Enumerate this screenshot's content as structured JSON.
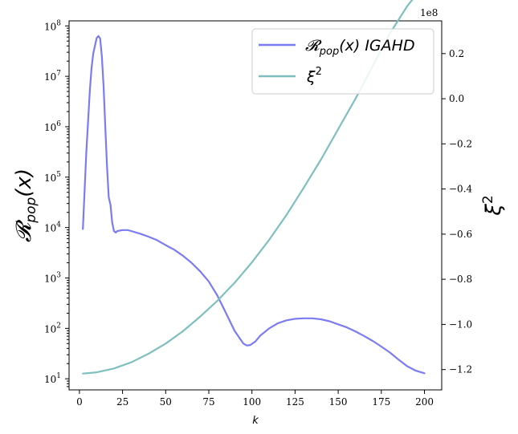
{
  "chart_data": {
    "type": "line",
    "xlabel": "k",
    "ylabel_left": "𝓡",
    "ylabel_left_sub": "pop",
    "ylabel_left_tail": "(x)",
    "ylabel_right": "ξ",
    "ylabel_right_sup": "2",
    "right_offset_label": "1e8",
    "xlim": [
      -6,
      210
    ],
    "ylim_left_log10": [
      0.78,
      8.1
    ],
    "ylim_right": [
      -1.29,
      0.345
    ],
    "y_left_scale": "log",
    "legend_placement": "top-right",
    "grid": false,
    "x_ticks": [
      0,
      25,
      50,
      75,
      100,
      125,
      150,
      175,
      200
    ],
    "x_tick_labels": [
      "0",
      "25",
      "50",
      "75",
      "100",
      "125",
      "150",
      "175",
      "200"
    ],
    "y_left_ticks": [
      1,
      2,
      3,
      4,
      5,
      6,
      7,
      8
    ],
    "y_left_tick_base": "10",
    "y_left_tick_exps": [
      "1",
      "2",
      "3",
      "4",
      "5",
      "6",
      "7",
      "8"
    ],
    "y_right_ticks": [
      -1.2,
      -1.0,
      -0.8,
      -0.6,
      -0.4,
      -0.2,
      0.0,
      0.2
    ],
    "y_right_tick_labels": [
      "−1.2",
      "−1.0",
      "−0.8",
      "−0.6",
      "−0.4",
      "−0.2",
      "0.0",
      "0.2"
    ],
    "series": [
      {
        "name": "𝓡",
        "name_sub": "pop",
        "name_tail": "(x) IGAHD",
        "color": "#7b7bf2",
        "axis": "left",
        "x": [
          2,
          4,
          6,
          7,
          8,
          10,
          11,
          12,
          13,
          14,
          15,
          16,
          17,
          18,
          19,
          20,
          21,
          22,
          25,
          28,
          30,
          35,
          40,
          45,
          50,
          55,
          60,
          65,
          70,
          75,
          80,
          85,
          90,
          95,
          97,
          99,
          102,
          105,
          110,
          115,
          120,
          125,
          130,
          135,
          140,
          145,
          150,
          155,
          160,
          165,
          170,
          175,
          180,
          185,
          190,
          195,
          200
        ],
        "log10_y": [
          3.97,
          5.5,
          6.7,
          7.15,
          7.45,
          7.76,
          7.8,
          7.75,
          7.4,
          6.8,
          6.0,
          5.2,
          4.6,
          4.45,
          4.1,
          3.93,
          3.9,
          3.93,
          3.95,
          3.95,
          3.93,
          3.88,
          3.82,
          3.75,
          3.65,
          3.56,
          3.44,
          3.3,
          3.13,
          2.93,
          2.65,
          2.3,
          1.95,
          1.7,
          1.66,
          1.67,
          1.74,
          1.86,
          2.0,
          2.1,
          2.16,
          2.19,
          2.2,
          2.2,
          2.18,
          2.14,
          2.08,
          2.02,
          1.94,
          1.85,
          1.75,
          1.64,
          1.52,
          1.38,
          1.25,
          1.16,
          1.11
        ]
      },
      {
        "name": "ξ",
        "name_sup": "2",
        "color": "#7fbfbf",
        "axis": "right",
        "x": [
          2,
          10,
          20,
          30,
          40,
          50,
          60,
          70,
          80,
          90,
          100,
          110,
          120,
          130,
          140,
          150,
          160,
          170,
          180,
          190,
          200
        ],
        "y": [
          -1.218,
          -1.212,
          -1.195,
          -1.168,
          -1.13,
          -1.085,
          -1.03,
          -0.965,
          -0.895,
          -0.815,
          -0.725,
          -0.625,
          -0.515,
          -0.395,
          -0.27,
          -0.135,
          0.0,
          0.145,
          0.29,
          0.41,
          0.505
        ]
      }
    ]
  }
}
